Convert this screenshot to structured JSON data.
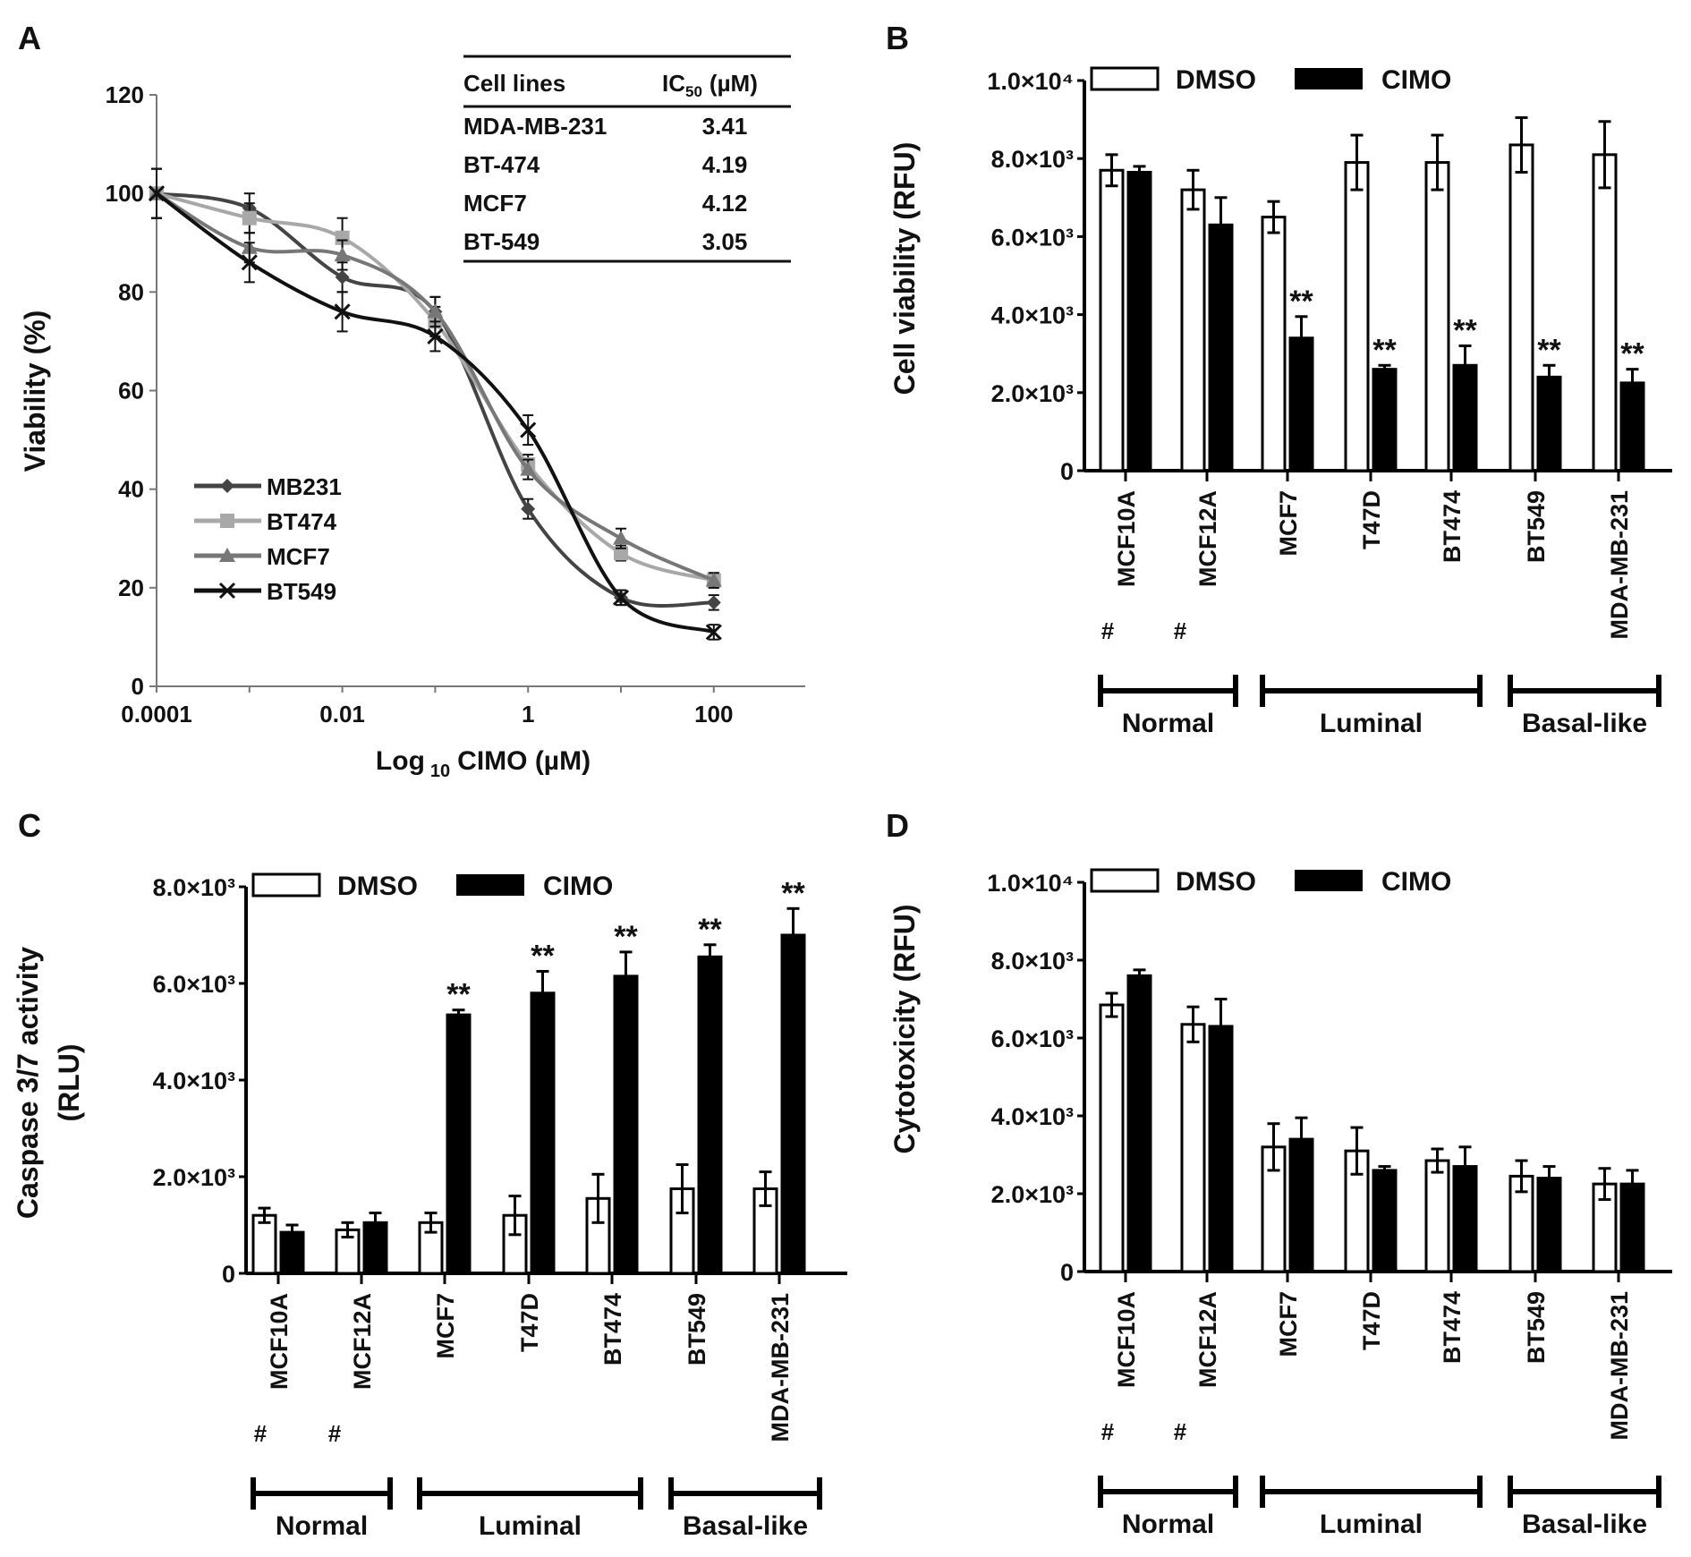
{
  "chart_data": [
    {
      "panel": "A",
      "type": "line",
      "xlabel_parts": [
        "Log",
        "10",
        "CIMO (µM)"
      ],
      "ylabel": "Viability (%)",
      "x_log10": [
        -4,
        -3,
        -2,
        -1,
        0,
        1,
        2
      ],
      "xticks": [
        {
          "v": -4,
          "label": "0.0001"
        },
        {
          "v": -2,
          "label": "0.01"
        },
        {
          "v": 0,
          "label": "1"
        },
        {
          "v": 2,
          "label": "100"
        }
      ],
      "ylim": [
        0,
        120
      ],
      "yticks": [
        0,
        20,
        40,
        60,
        80,
        100,
        120
      ],
      "series": [
        {
          "name": "MB231",
          "color": "#444444",
          "marker": "diamond",
          "values": [
            100,
            97,
            83,
            76,
            36,
            18,
            17
          ],
          "err": [
            5,
            3,
            3,
            3,
            2,
            1.5,
            1.5
          ]
        },
        {
          "name": "BT474",
          "color": "#a8a8a8",
          "marker": "square",
          "values": [
            100,
            95,
            91,
            74,
            45,
            27,
            21.5
          ],
          "err": [
            5,
            3,
            4,
            3,
            2,
            1.5,
            1.5
          ]
        },
        {
          "name": "MCF7",
          "color": "#777777",
          "marker": "triangle",
          "values": [
            100,
            89,
            87.5,
            76,
            44,
            30,
            21.5
          ],
          "err": [
            5,
            3,
            3,
            3,
            2,
            2,
            1.5
          ]
        },
        {
          "name": "BT549",
          "color": "#111111",
          "marker": "x",
          "values": [
            100,
            86,
            76,
            71,
            52,
            18,
            11
          ],
          "err": [
            5,
            4,
            4,
            3,
            3,
            1.5,
            1.5
          ]
        }
      ],
      "ic50_table": {
        "headers": [
          "Cell lines",
          "IC",
          "50",
          "(µM)"
        ],
        "rows": [
          [
            "MDA-MB-231",
            "3.41"
          ],
          [
            "BT-474",
            "4.19"
          ],
          [
            "MCF7",
            "4.12"
          ],
          [
            "BT-549",
            "3.05"
          ]
        ]
      }
    },
    {
      "panel": "B",
      "type": "bar",
      "ylabel": "Cell viability (RFU)",
      "ylim": [
        0,
        10000
      ],
      "yticks": [
        {
          "v": 0,
          "label": "0"
        },
        {
          "v": 2000,
          "label": "2.0×10³"
        },
        {
          "v": 4000,
          "label": "4.0×10³"
        },
        {
          "v": 6000,
          "label": "6.0×10³"
        },
        {
          "v": 8000,
          "label": "8.0×10³"
        },
        {
          "v": 10000,
          "label": "1.0×10⁴"
        }
      ],
      "categories": [
        "MCF10A",
        "MCF12A",
        "MCF7",
        "T47D",
        "BT474",
        "BT549",
        "MDA-MB-231"
      ],
      "category_marks": [
        "#",
        "#",
        "",
        "",
        "",
        "",
        ""
      ],
      "groups": [
        {
          "label": "Normal",
          "from": 0,
          "to": 1
        },
        {
          "label": "Luminal",
          "from": 2,
          "to": 4
        },
        {
          "label": "Basal-like",
          "from": 5,
          "to": 6
        }
      ],
      "series": [
        {
          "name": "DMSO",
          "fill": "#ffffff",
          "values": [
            7700,
            7200,
            6500,
            7900,
            7900,
            8350,
            8100
          ],
          "err": [
            400,
            500,
            400,
            700,
            700,
            700,
            850
          ]
        },
        {
          "name": "CIMO",
          "fill": "#000000",
          "values": [
            7650,
            6300,
            3400,
            2600,
            2700,
            2400,
            2250
          ],
          "err": [
            150,
            700,
            550,
            100,
            500,
            300,
            350
          ],
          "significance": [
            "",
            "",
            "**",
            "**",
            "**",
            "**",
            "**"
          ]
        }
      ]
    },
    {
      "panel": "C",
      "type": "bar",
      "ylabel": "Caspase 3/7 activity",
      "ylabel2": "(RLU)",
      "ylim": [
        0,
        8000
      ],
      "yticks": [
        {
          "v": 0,
          "label": "0"
        },
        {
          "v": 2000,
          "label": "2.0×10³"
        },
        {
          "v": 4000,
          "label": "4.0×10³"
        },
        {
          "v": 6000,
          "label": "6.0×10³"
        },
        {
          "v": 8000,
          "label": "8.0×10³"
        }
      ],
      "categories": [
        "MCF10A",
        "MCF12A",
        "MCF7",
        "T47D",
        "BT474",
        "BT549",
        "MDA-MB-231"
      ],
      "category_marks": [
        "#",
        "#",
        "",
        "",
        "",
        "",
        ""
      ],
      "groups": [
        {
          "label": "Normal",
          "from": 0,
          "to": 1
        },
        {
          "label": "Luminal",
          "from": 2,
          "to": 4
        },
        {
          "label": "Basal-like",
          "from": 5,
          "to": 6
        }
      ],
      "series": [
        {
          "name": "DMSO",
          "fill": "#ffffff",
          "values": [
            1200,
            900,
            1050,
            1200,
            1550,
            1750,
            1750
          ],
          "err": [
            150,
            150,
            200,
            400,
            500,
            500,
            350
          ]
        },
        {
          "name": "CIMO",
          "fill": "#000000",
          "values": [
            850,
            1050,
            5350,
            5800,
            6150,
            6550,
            7000
          ],
          "err": [
            150,
            200,
            100,
            450,
            500,
            250,
            550
          ],
          "significance": [
            "",
            "",
            "**",
            "**",
            "**",
            "**",
            "**"
          ]
        }
      ]
    },
    {
      "panel": "D",
      "type": "bar",
      "ylabel": "Cytotoxicity (RFU)",
      "ylim": [
        0,
        10000
      ],
      "yticks": [
        {
          "v": 0,
          "label": "0"
        },
        {
          "v": 2000,
          "label": "2.0×10³"
        },
        {
          "v": 4000,
          "label": "4.0×10³"
        },
        {
          "v": 6000,
          "label": "6.0×10³"
        },
        {
          "v": 8000,
          "label": "8.0×10³"
        },
        {
          "v": 10000,
          "label": "1.0×10⁴"
        }
      ],
      "categories": [
        "MCF10A",
        "MCF12A",
        "MCF7",
        "T47D",
        "BT474",
        "BT549",
        "MDA-MB-231"
      ],
      "category_marks": [
        "#",
        "#",
        "",
        "",
        "",
        "",
        ""
      ],
      "groups": [
        {
          "label": "Normal",
          "from": 0,
          "to": 1
        },
        {
          "label": "Luminal",
          "from": 2,
          "to": 4
        },
        {
          "label": "Basal-like",
          "from": 5,
          "to": 6
        }
      ],
      "series": [
        {
          "name": "DMSO",
          "fill": "#ffffff",
          "values": [
            6850,
            6350,
            3200,
            3100,
            2850,
            2450,
            2250
          ],
          "err": [
            300,
            450,
            600,
            600,
            300,
            400,
            400
          ]
        },
        {
          "name": "CIMO",
          "fill": "#000000",
          "values": [
            7600,
            6300,
            3400,
            2600,
            2700,
            2400,
            2250
          ],
          "err": [
            150,
            700,
            550,
            100,
            500,
            300,
            350
          ],
          "significance": [
            "",
            "",
            "",
            "",
            "",
            "",
            ""
          ]
        }
      ]
    }
  ]
}
